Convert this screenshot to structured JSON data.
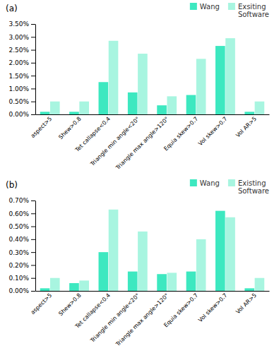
{
  "chart_data": [
    {
      "type": "bar",
      "title": "(a)",
      "categories": [
        "aspect>5",
        "Shew>0.8",
        "Tet callapse<0.4",
        "Triangle min angle<20°",
        "Triangle max angle>120°",
        "Equia skew>0.7",
        "Vol skew>0.7",
        "Vol AR>5"
      ],
      "series": [
        {
          "name": "Wang",
          "color": "#3de8c0",
          "values": [
            0.001,
            0.001,
            0.0125,
            0.0085,
            0.0035,
            0.0075,
            0.0265,
            0.001
          ]
        },
        {
          "name": "Exsiting\nSoftware",
          "color": "#a8f5e0",
          "values": [
            0.005,
            0.005,
            0.0285,
            0.0235,
            0.007,
            0.0215,
            0.0295,
            0.005
          ]
        }
      ],
      "ylim": [
        0,
        0.035
      ],
      "yticks": [
        {
          "value": 0.0,
          "label": "0.00%"
        },
        {
          "value": 0.005,
          "label": "0.50%"
        },
        {
          "value": 0.01,
          "label": "1.00%"
        },
        {
          "value": 0.015,
          "label": "1.50%"
        },
        {
          "value": 0.02,
          "label": "2.00%"
        },
        {
          "value": 0.025,
          "label": "2.50%"
        },
        {
          "value": 0.03,
          "label": "3.00%"
        },
        {
          "value": 0.035,
          "label": "3.50%"
        }
      ],
      "grid": false,
      "legend": "upper right"
    },
    {
      "type": "bar",
      "title": "(b)",
      "categories": [
        "aspect>5",
        "Shew>0.8",
        "Tet callapse<0.4",
        "Triangle min angle<20°",
        "Triangle max angle>120°",
        "Equia skew>0.7",
        "Vol skew>0.7",
        "Vol AR>5"
      ],
      "series": [
        {
          "name": "Wang",
          "color": "#3de8c0",
          "values": [
            0.0002,
            0.0006,
            0.003,
            0.0015,
            0.0013,
            0.0015,
            0.0062,
            0.0002
          ]
        },
        {
          "name": "Existing\nSoftware",
          "color": "#a8f5e0",
          "values": [
            0.001,
            0.0008,
            0.0063,
            0.0046,
            0.0014,
            0.004,
            0.0057,
            0.001
          ]
        }
      ],
      "ylim": [
        0,
        0.007
      ],
      "yticks": [
        {
          "value": 0.0,
          "label": "0.00%"
        },
        {
          "value": 0.001,
          "label": "0.10%"
        },
        {
          "value": 0.002,
          "label": "0.20%"
        },
        {
          "value": 0.003,
          "label": "0.30%"
        },
        {
          "value": 0.004,
          "label": "0.40%"
        },
        {
          "value": 0.005,
          "label": "0.50%"
        },
        {
          "value": 0.006,
          "label": "0.60%"
        },
        {
          "value": 0.007,
          "label": "0.70%"
        }
      ],
      "grid": false,
      "legend": "upper right"
    }
  ]
}
